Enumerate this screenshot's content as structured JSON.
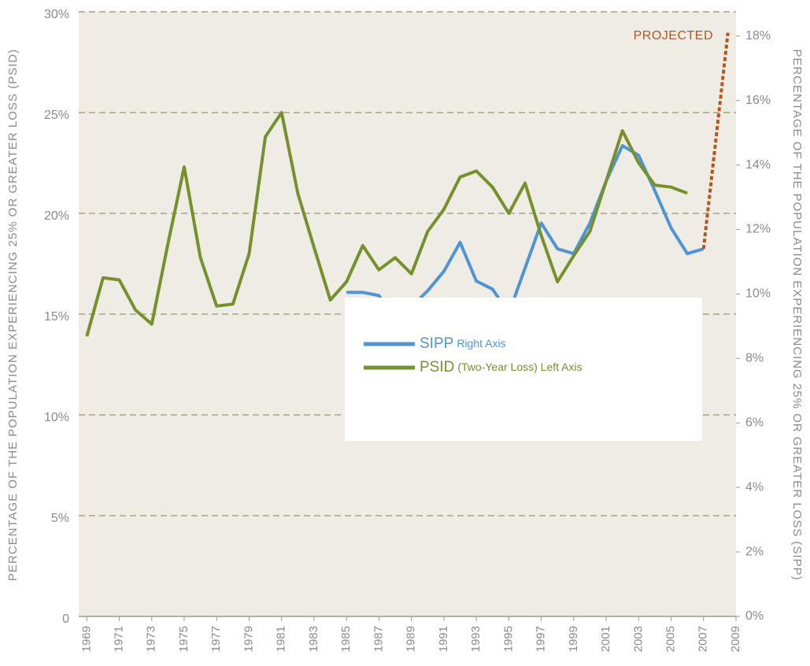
{
  "chart_data": {
    "type": "line",
    "y_label": "PERCENTAGE OF THE POPULATION EXPERIENCING 25% OR GREATER LOSS (PSID)",
    "y2_label": "PERCENTAGE OF THE POPULATION EXPERIENCING 25% OR GREATER LOSS (SIPP)",
    "xlim": [
      1968.5,
      2009
    ],
    "xticks": [
      1969,
      1971,
      1973,
      1975,
      1977,
      1979,
      1981,
      1983,
      1985,
      1987,
      1989,
      1991,
      1993,
      1995,
      1997,
      1999,
      2001,
      2003,
      2005,
      2007,
      2009
    ],
    "ylim": [
      0,
      30
    ],
    "yticks": [
      0,
      {
        "value": 5,
        "label": "5%"
      },
      {
        "value": 10,
        "label": "10%"
      },
      {
        "value": 15,
        "label": "15%"
      },
      {
        "value": 20,
        "label": "20%"
      },
      {
        "value": 25,
        "label": "25%"
      },
      {
        "value": 30,
        "label": "30%"
      }
    ],
    "y2lim": [
      0,
      18.75
    ],
    "y2ticks": [
      {
        "value": 0,
        "label": "0%"
      },
      {
        "value": 2,
        "label": "2%"
      },
      {
        "value": 4,
        "label": "4%"
      },
      {
        "value": 6,
        "label": "6%"
      },
      {
        "value": 8,
        "label": "8%"
      },
      {
        "value": 10,
        "label": "10%"
      },
      {
        "value": 12,
        "label": "12%"
      },
      {
        "value": 14,
        "label": "14%"
      },
      {
        "value": 16,
        "label": "16%"
      },
      {
        "value": 18,
        "label": "18%"
      }
    ],
    "grid": true,
    "series": [
      {
        "name": "SIPP",
        "legend_note": "Right Axis",
        "color": "#4f94d4",
        "axis": "y2",
        "x": [
          1985,
          1986,
          1987,
          1988,
          1989,
          1990,
          1991,
          1992,
          1993,
          1994,
          1995,
          1996,
          1997,
          1998,
          1999,
          2000,
          2001,
          2002,
          2003,
          2004,
          2005,
          2006,
          2007
        ],
        "values": [
          10.05,
          10.05,
          9.95,
          9.17,
          9.6,
          10.1,
          10.7,
          11.6,
          10.4,
          10.15,
          9.4,
          10.8,
          12.2,
          11.4,
          11.25,
          12.2,
          13.5,
          14.6,
          14.3,
          13.2,
          12.05,
          11.25,
          11.4
        ]
      },
      {
        "name": "PSID",
        "legend_note": "(Two-Year Loss) Left Axis",
        "color": "#76902b",
        "axis": "y",
        "x": [
          1969,
          1970,
          1971,
          1972,
          1973,
          1974,
          1975,
          1976,
          1977,
          1978,
          1979,
          1980,
          1981,
          1982,
          1983,
          1984,
          1985,
          1986,
          1987,
          1988,
          1989,
          1990,
          1991,
          1992,
          1993,
          1994,
          1995,
          1996,
          1997,
          1998,
          1999,
          2000,
          2001,
          2002,
          2003,
          2004,
          2005,
          2006
        ],
        "values": [
          13.9,
          16.8,
          16.7,
          15.2,
          14.5,
          18.5,
          22.3,
          17.8,
          15.4,
          15.5,
          18.0,
          23.8,
          25.0,
          21.0,
          18.3,
          15.7,
          16.6,
          18.4,
          17.2,
          17.8,
          17.0,
          19.1,
          20.2,
          21.8,
          22.1,
          21.3,
          20.0,
          21.5,
          18.9,
          16.6,
          17.9,
          19.1,
          21.6,
          24.1,
          22.5,
          21.4,
          21.3,
          21.0
        ]
      }
    ],
    "projection": {
      "label": "PROJECTED",
      "color": "#b5561d",
      "axis": "y2",
      "x": [
        2007,
        2008.5
      ],
      "values": [
        11.4,
        18.1
      ]
    }
  }
}
